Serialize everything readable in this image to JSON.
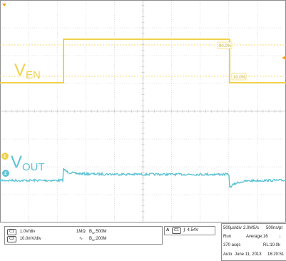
{
  "colors": {
    "background": "#ffffff",
    "grid": "#c8c8c8",
    "grid_center": "#b4b4b4",
    "ch1": "#f0d24a",
    "ch2": "#5cc3d6",
    "trigger": "#f0a020",
    "border": "#8c8c8c"
  },
  "signals": {
    "ven_label": "V",
    "ven_sub": "EN",
    "vout_label": "V",
    "vout_sub": "OUT"
  },
  "cursors": {
    "upper_label": "90.0%",
    "lower_label": "10.0%"
  },
  "markers": {
    "ch1": "1",
    "ch2": "2"
  },
  "channels": [
    {
      "id": "C1",
      "scale": "1.0V/div",
      "impedance": "1MΩ",
      "bw": "B",
      "bw_sub": "W",
      "bw_value": ":500M",
      "coupling": ""
    },
    {
      "id": "C2",
      "scale": "10.0mV/div",
      "impedance": "",
      "bw": "B",
      "bw_sub": "W",
      "bw_value": ":200M",
      "coupling": "ac"
    }
  ],
  "trigger": {
    "source": "C1",
    "level": "4.54V",
    "slope_icon": "rising-edge-icon"
  },
  "acquisition": {
    "horizontal": "500μs/div",
    "sample_rate": "2.0MS/s",
    "resolution": "500ns/pt",
    "mode": "Run",
    "average": "Average:16",
    "acqs": "370 acqs",
    "record_length": "RL:10.0k",
    "trigger_mode": "Auto",
    "date": "June 11, 2013",
    "time": "16:20:51"
  }
}
